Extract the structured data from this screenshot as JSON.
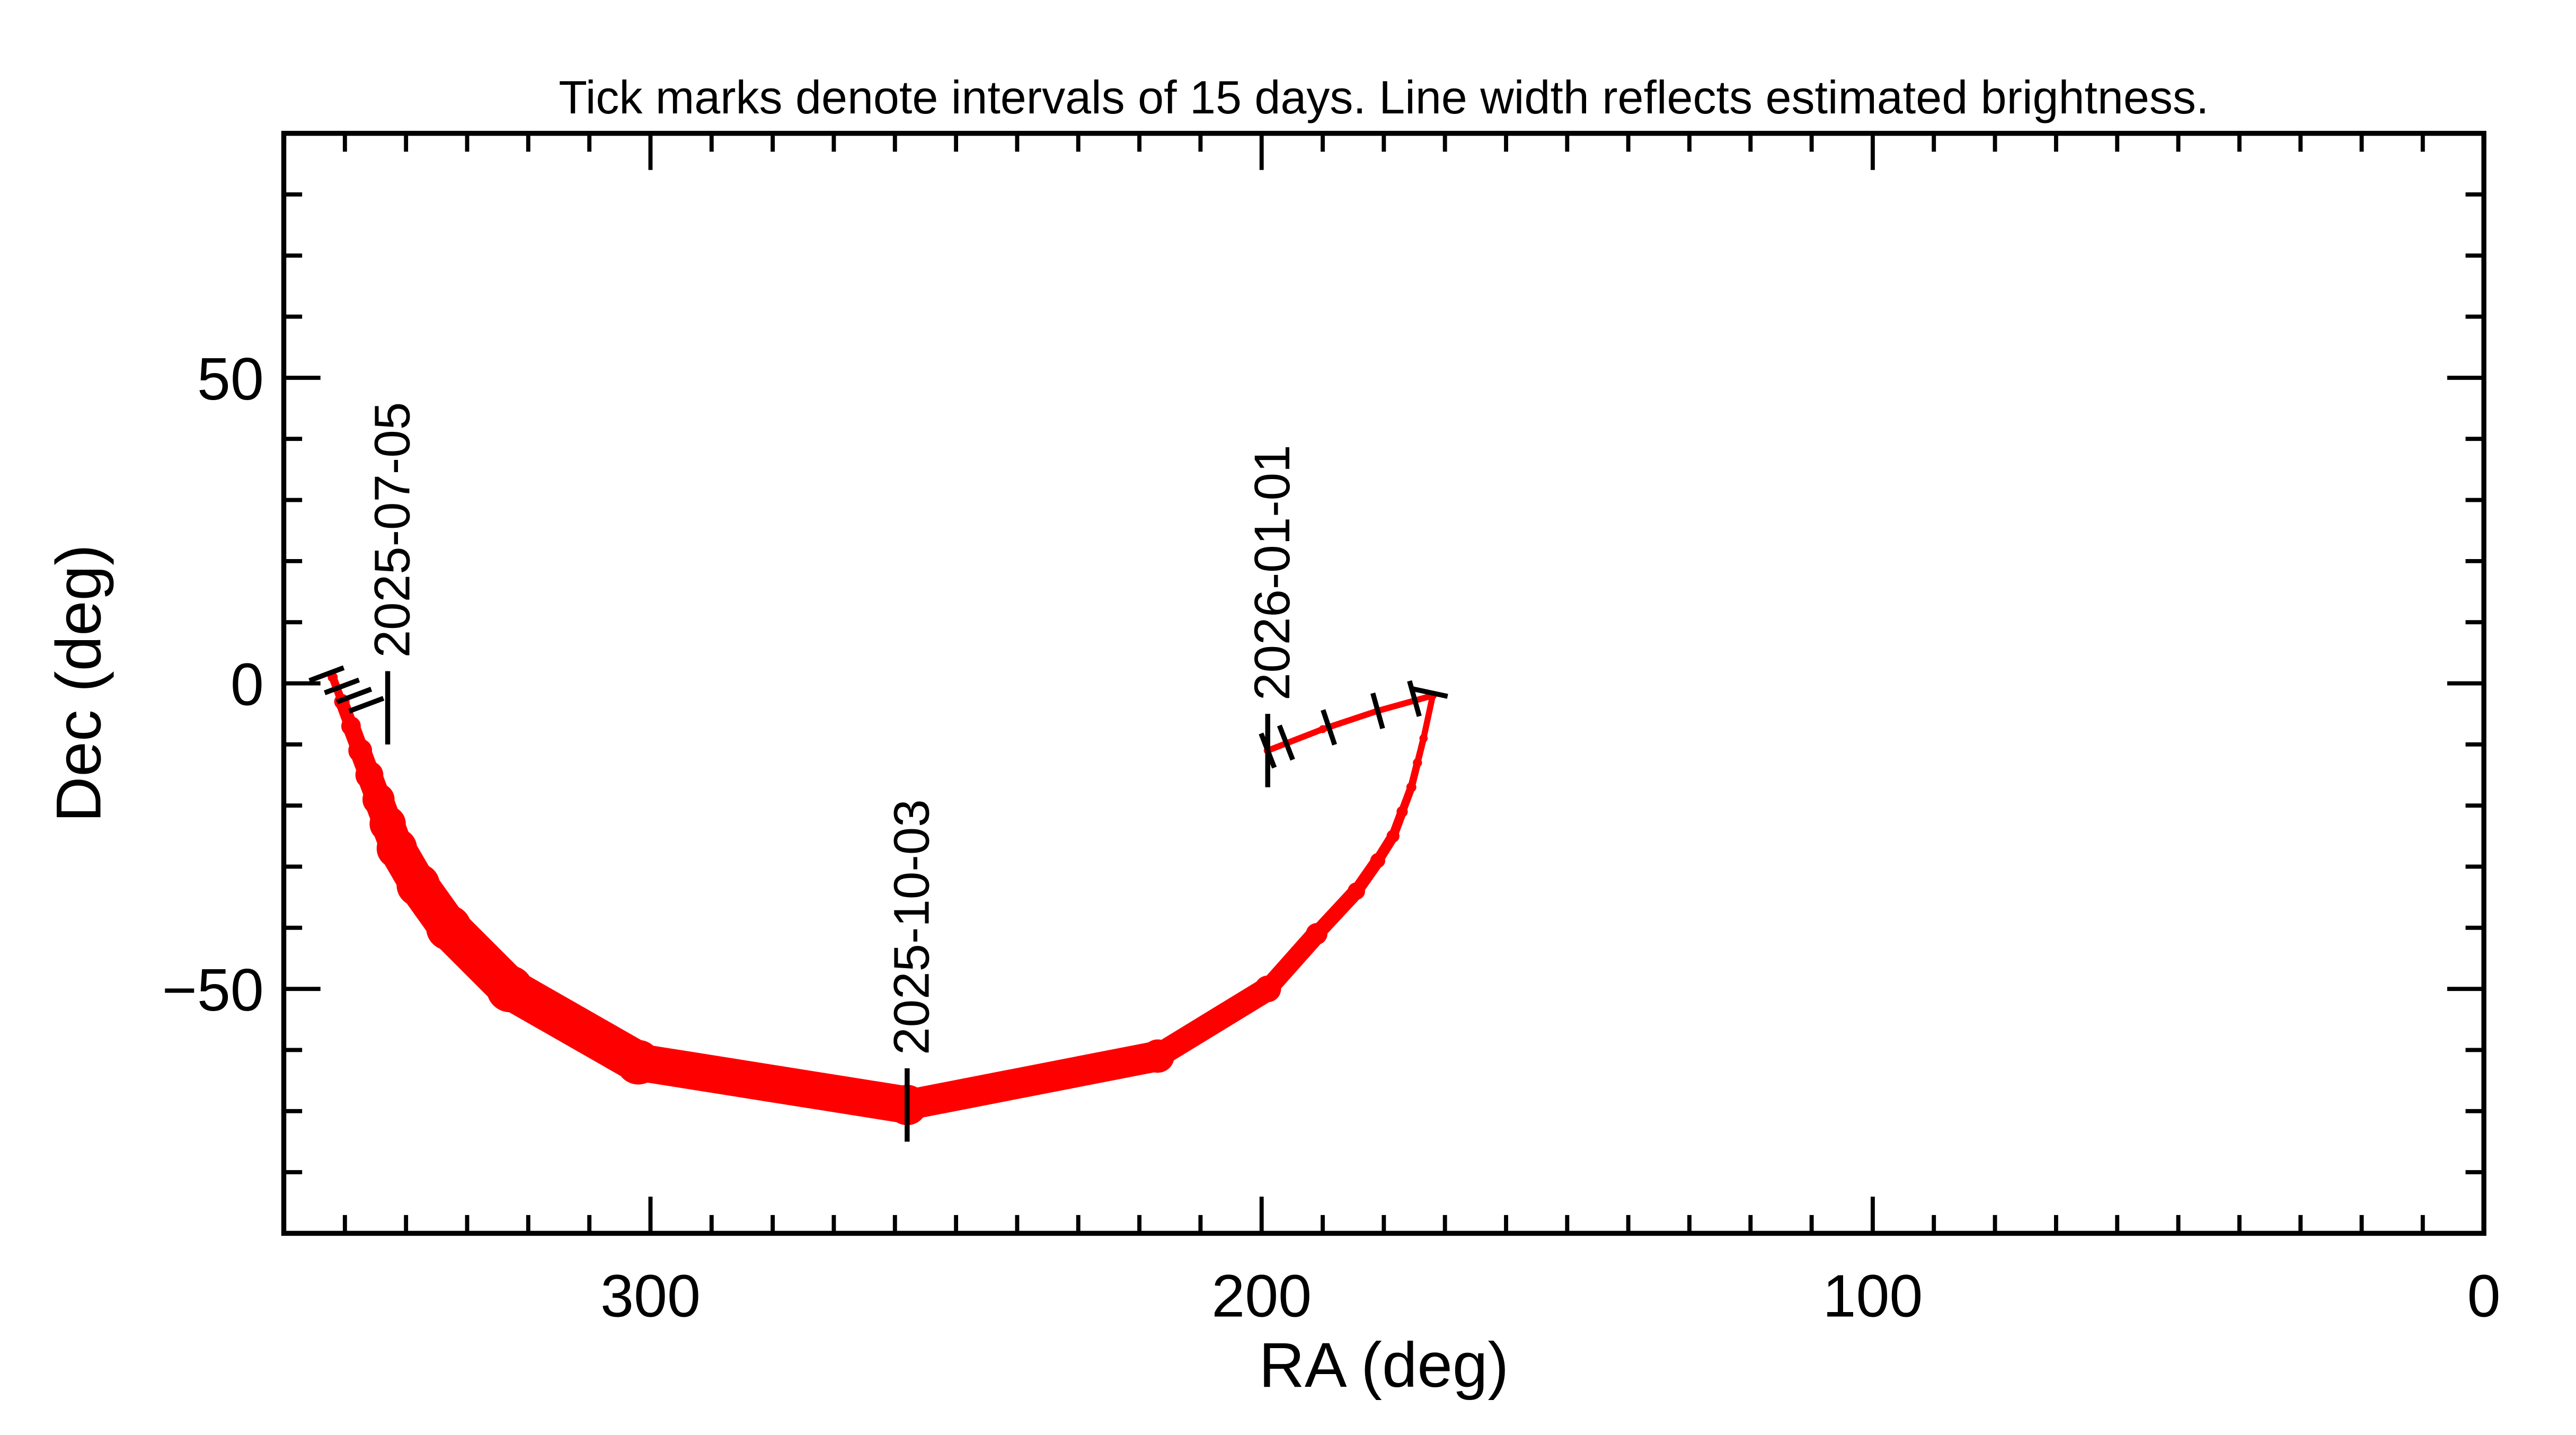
{
  "chart_data": {
    "type": "scatter",
    "title": "Tick marks denote intervals of 15 days.  Line width reflects estimated brightness.",
    "xlabel": "RA (deg)",
    "ylabel": "Dec (deg)",
    "xlim": [
      360,
      0
    ],
    "ylim": [
      -90,
      90
    ],
    "x_ticks": [
      300,
      200,
      100,
      0
    ],
    "x_tick_labels": [
      "300",
      "200",
      "100",
      "0"
    ],
    "y_ticks": [
      50,
      0,
      -50
    ],
    "y_tick_labels": [
      "50",
      "0",
      "−50"
    ],
    "x_minor_step": 10,
    "y_minor_step": 10,
    "grid": false,
    "colors": {
      "track": "#ff0000",
      "ticks": "#000000",
      "axes": "#000000"
    },
    "track": [
      {
        "ra": 352,
        "dec": 1,
        "relative_brightness": 0.12
      },
      {
        "ra": 350.5,
        "dec": -3,
        "relative_brightness": 0.25
      },
      {
        "ra": 349,
        "dec": -7,
        "relative_brightness": 0.35
      },
      {
        "ra": 347.5,
        "dec": -11,
        "relative_brightness": 0.45
      },
      {
        "ra": 346,
        "dec": -15,
        "relative_brightness": 0.55
      },
      {
        "ra": 344.5,
        "dec": -19,
        "relative_brightness": 0.65
      },
      {
        "ra": 343,
        "dec": -23,
        "relative_brightness": 0.75
      },
      {
        "ra": 341.5,
        "dec": -27,
        "relative_brightness": 0.85
      },
      {
        "ra": 338,
        "dec": -33,
        "relative_brightness": 0.92
      },
      {
        "ra": 333,
        "dec": -40,
        "relative_brightness": 0.97
      },
      {
        "ra": 323,
        "dec": -50,
        "relative_brightness": 1.0
      },
      {
        "ra": 302,
        "dec": -62,
        "relative_brightness": 0.95
      },
      {
        "ra": 258,
        "dec": -69,
        "relative_brightness": 0.85
      },
      {
        "ra": 217,
        "dec": -61,
        "relative_brightness": 0.68
      },
      {
        "ra": 199,
        "dec": -50,
        "relative_brightness": 0.52
      },
      {
        "ra": 191,
        "dec": -41,
        "relative_brightness": 0.4
      },
      {
        "ra": 184.5,
        "dec": -34,
        "relative_brightness": 0.3
      },
      {
        "ra": 181,
        "dec": -29,
        "relative_brightness": 0.24
      },
      {
        "ra": 178.5,
        "dec": -25,
        "relative_brightness": 0.19
      },
      {
        "ra": 177,
        "dec": -21,
        "relative_brightness": 0.15
      },
      {
        "ra": 175.5,
        "dec": -17,
        "relative_brightness": 0.12
      },
      {
        "ra": 174.5,
        "dec": -13,
        "relative_brightness": 0.1
      },
      {
        "ra": 173.5,
        "dec": -9,
        "relative_brightness": 0.08
      },
      {
        "ra": 172,
        "dec": -2,
        "relative_brightness": 0.07
      },
      {
        "ra": 181,
        "dec": -4.5,
        "relative_brightness": 0.07
      },
      {
        "ra": 190,
        "dec": -7.5,
        "relative_brightness": 0.07
      },
      {
        "ra": 199,
        "dec": -11,
        "relative_brightness": 0.07
      }
    ],
    "interval_ticks": [
      {
        "ra": 353,
        "dec": 1.5
      },
      {
        "ra": 350.5,
        "dec": -0.5
      },
      {
        "ra": 348.5,
        "dec": -2
      },
      {
        "ra": 346.5,
        "dec": -3.5
      },
      {
        "ra": 172.5,
        "dec": -1.5
      },
      {
        "ra": 175,
        "dec": -2.5
      },
      {
        "ra": 181,
        "dec": -4.5
      },
      {
        "ra": 189,
        "dec": -7.2
      },
      {
        "ra": 196,
        "dec": -9.7
      },
      {
        "ra": 199,
        "dec": -11
      }
    ],
    "date_markers": [
      {
        "label": "2025-07-05",
        "ra": 343,
        "dec": -4
      },
      {
        "label": "2025-10-03",
        "ra": 258,
        "dec": -69
      },
      {
        "label": "2026-01-01",
        "ra": 199,
        "dec": -11
      }
    ]
  }
}
